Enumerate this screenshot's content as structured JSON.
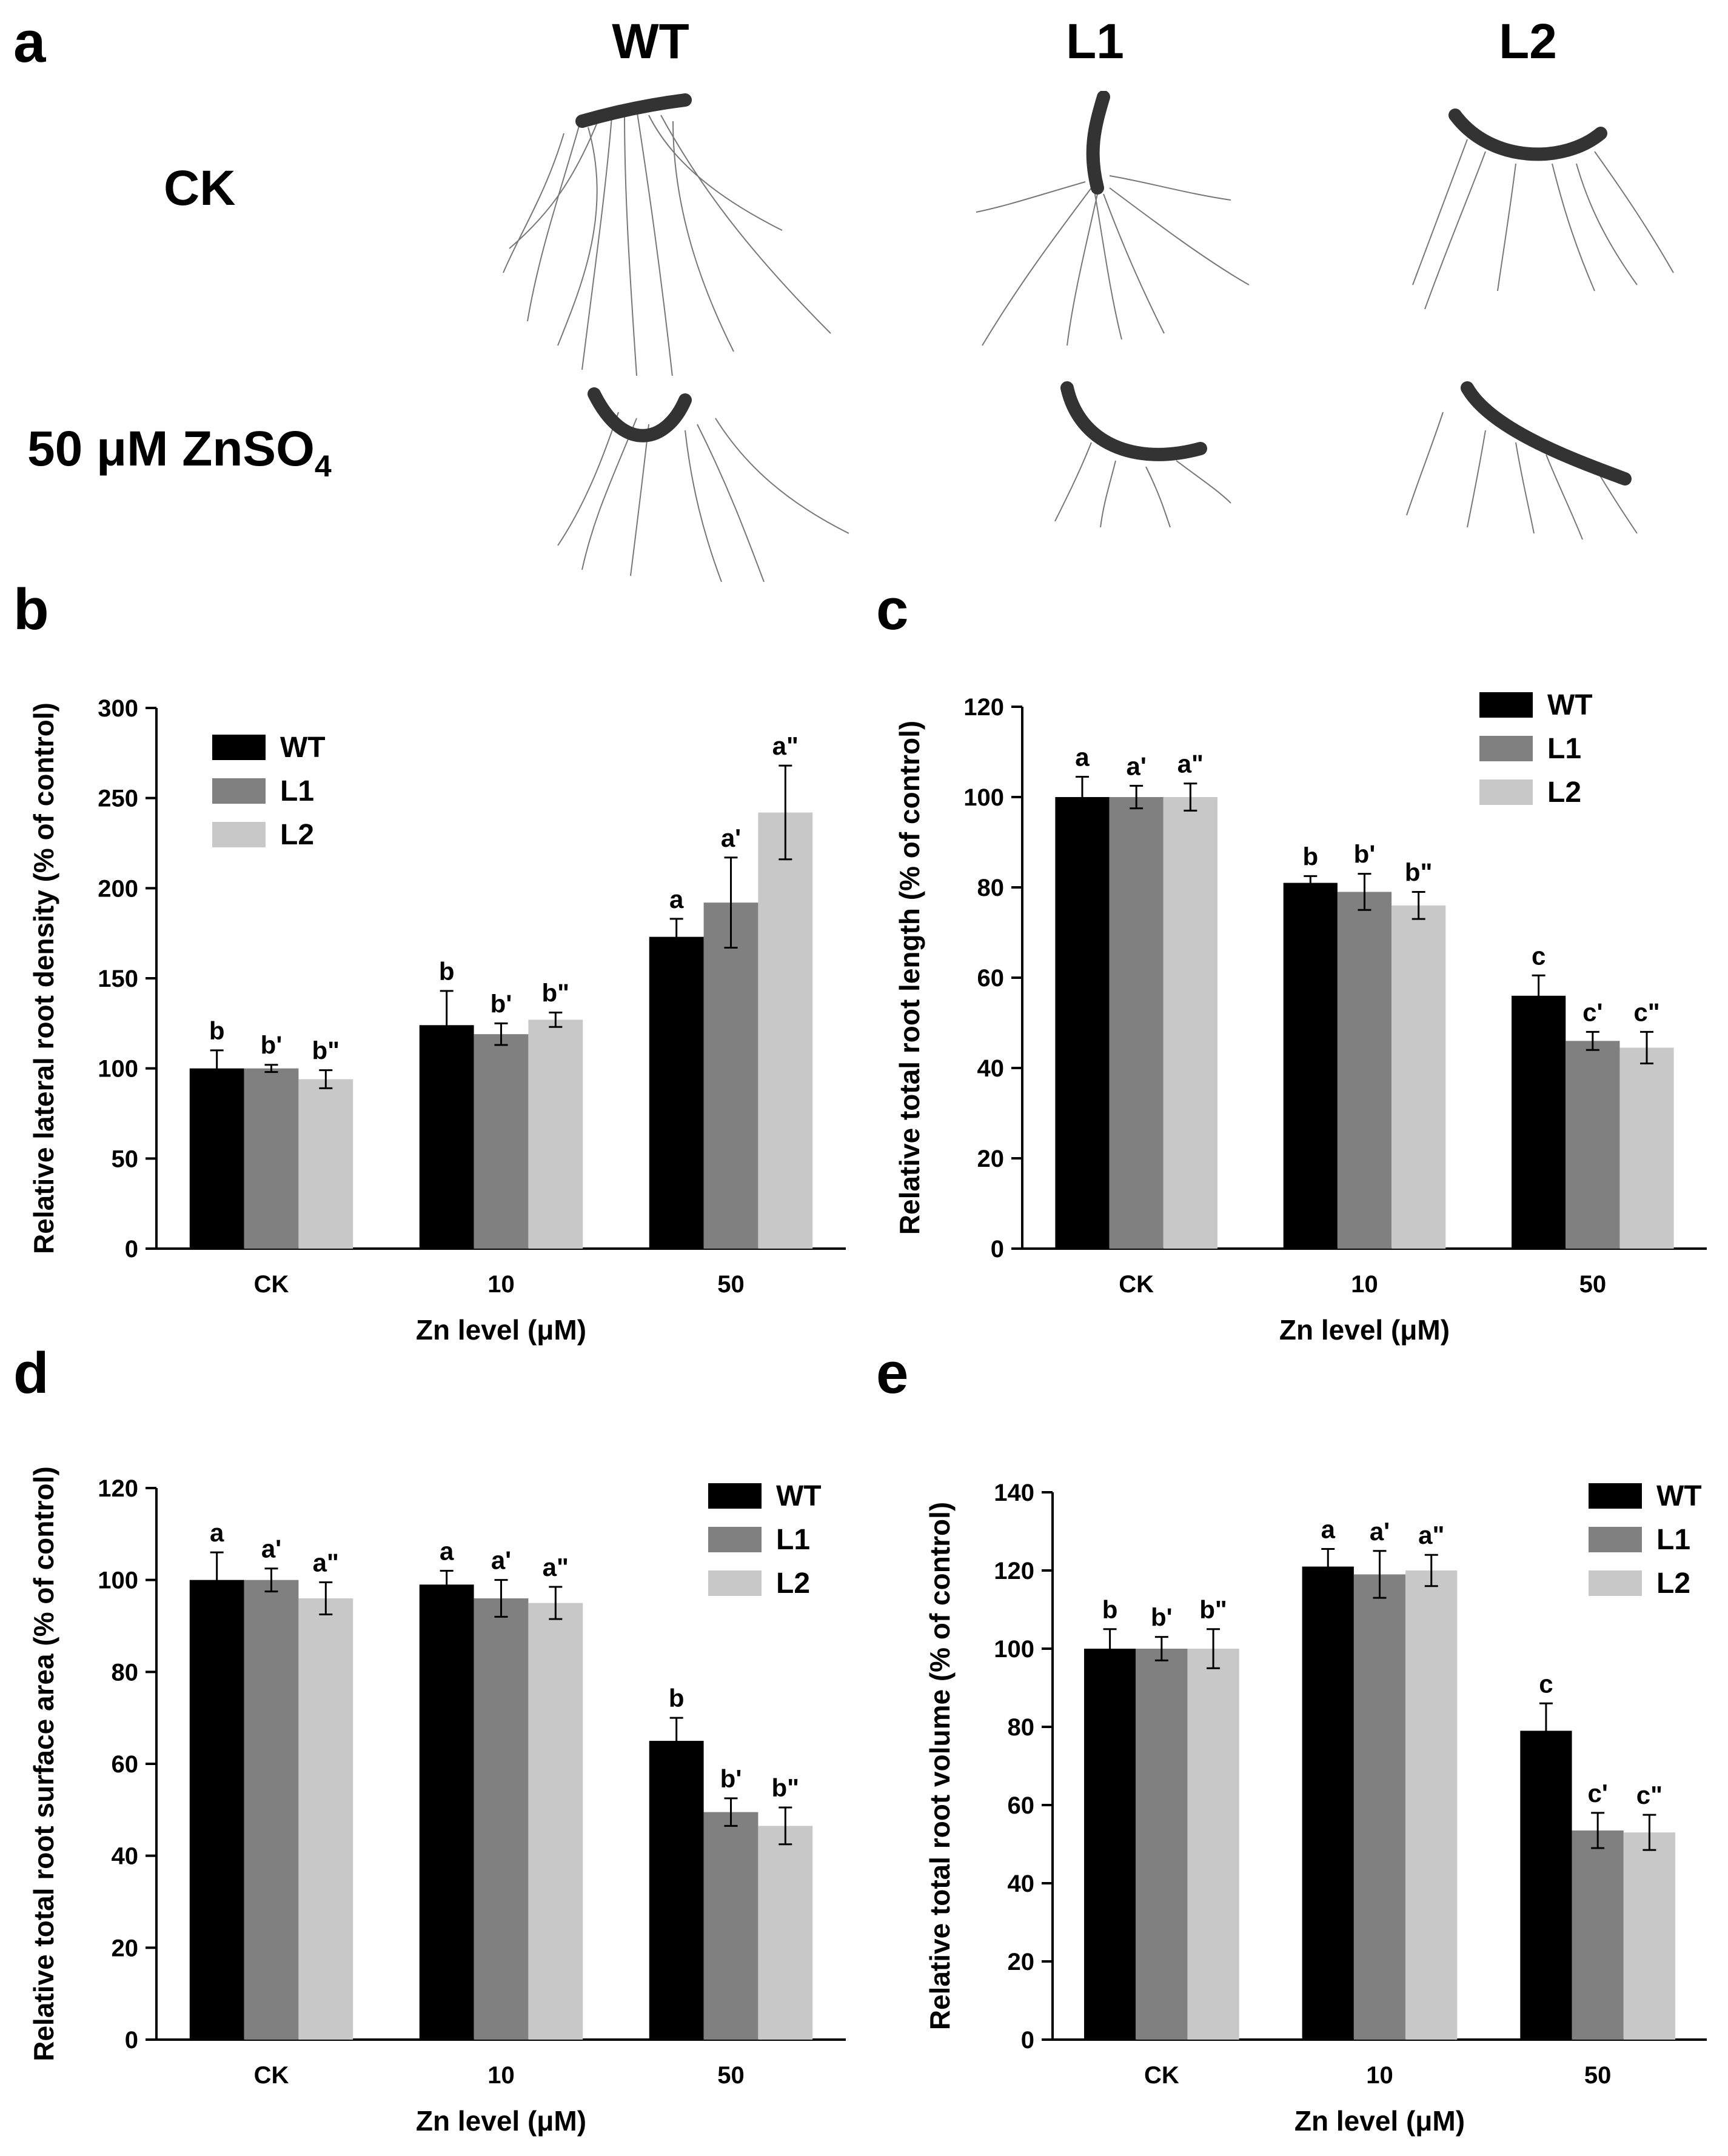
{
  "figure": {
    "panel_labels": {
      "a": "a",
      "b": "b",
      "c": "c",
      "d": "d",
      "e": "e"
    },
    "photo_panel": {
      "columns": [
        "WT",
        "L1",
        "L2"
      ],
      "rows": [
        {
          "label": "CK",
          "sub": ""
        },
        {
          "label": "50 μM ZnSO",
          "sub": "4"
        }
      ]
    }
  },
  "colors": {
    "WT": "#000000",
    "L1": "#808080",
    "L2": "#c8c8c8"
  },
  "chart_data": [
    {
      "panel": "b",
      "type": "bar",
      "title": "",
      "categories": [
        "CK",
        "10",
        "50"
      ],
      "xlabel": "Zn level (μM)",
      "ylabel": "Relative lateral root density (% of control)",
      "ylim": [
        0,
        300
      ],
      "yticks": [
        "0",
        "50",
        "100",
        "150",
        "200",
        "250",
        "300"
      ],
      "legend": {
        "position": "top-left"
      },
      "series": [
        {
          "name": "WT",
          "values": [
            100,
            124,
            173
          ],
          "errors": [
            10,
            19,
            10
          ],
          "labels": [
            "b",
            "b",
            "a"
          ]
        },
        {
          "name": "L1",
          "values": [
            100,
            119,
            192
          ],
          "errors": [
            2,
            6,
            25
          ],
          "labels": [
            "b'",
            "b'",
            "a'"
          ]
        },
        {
          "name": "L2",
          "values": [
            94,
            127,
            242
          ],
          "errors": [
            5,
            4,
            26
          ],
          "labels": [
            "b\"",
            "b\"",
            "a\""
          ]
        }
      ]
    },
    {
      "panel": "c",
      "type": "bar",
      "title": "",
      "categories": [
        "CK",
        "10",
        "50"
      ],
      "xlabel": "Zn level (μM)",
      "ylabel": "Relative total root length (% of control)",
      "ylim": [
        0,
        120
      ],
      "yticks": [
        "0",
        "20",
        "40",
        "60",
        "80",
        "100",
        "120"
      ],
      "legend": {
        "position": "top-right"
      },
      "series": [
        {
          "name": "WT",
          "values": [
            100,
            81,
            56
          ],
          "errors": [
            4.5,
            1.5,
            4.5
          ],
          "labels": [
            "a",
            "b",
            "c"
          ]
        },
        {
          "name": "L1",
          "values": [
            100,
            79,
            46
          ],
          "errors": [
            2.5,
            4,
            2
          ],
          "labels": [
            "a'",
            "b'",
            "c'"
          ]
        },
        {
          "name": "L2",
          "values": [
            100,
            76,
            44.5
          ],
          "errors": [
            3,
            3,
            3.5
          ],
          "labels": [
            "a\"",
            "b\"",
            "c\""
          ]
        }
      ]
    },
    {
      "panel": "d",
      "type": "bar",
      "title": "",
      "categories": [
        "CK",
        "10",
        "50"
      ],
      "xlabel": "Zn level (μM)",
      "ylabel": "Relative total root surface area (% of control)",
      "ylim": [
        0,
        120
      ],
      "yticks": [
        "0",
        "20",
        "40",
        "60",
        "80",
        "100",
        "120"
      ],
      "legend": {
        "position": "top-right"
      },
      "series": [
        {
          "name": "WT",
          "values": [
            100,
            99,
            65
          ],
          "errors": [
            6,
            3,
            5
          ],
          "labels": [
            "a",
            "a",
            "b"
          ]
        },
        {
          "name": "L1",
          "values": [
            100,
            96,
            49.5
          ],
          "errors": [
            2.5,
            4,
            3
          ],
          "labels": [
            "a'",
            "a'",
            "b'"
          ]
        },
        {
          "name": "L2",
          "values": [
            96,
            95,
            46.5
          ],
          "errors": [
            3.5,
            3.5,
            4
          ],
          "labels": [
            "a\"",
            "a\"",
            "b\""
          ]
        }
      ]
    },
    {
      "panel": "e",
      "type": "bar",
      "title": "",
      "categories": [
        "CK",
        "10",
        "50"
      ],
      "xlabel": "Zn level (μM)",
      "ylabel": "Relative total root volume (% of control)",
      "ylim": [
        0,
        140
      ],
      "yticks": [
        "0",
        "20",
        "40",
        "60",
        "80",
        "100",
        "120",
        "140"
      ],
      "legend": {
        "position": "top-right"
      },
      "series": [
        {
          "name": "WT",
          "values": [
            100,
            121,
            79
          ],
          "errors": [
            5,
            4.5,
            7
          ],
          "labels": [
            "b",
            "a",
            "c"
          ]
        },
        {
          "name": "L1",
          "values": [
            100,
            119,
            53.5
          ],
          "errors": [
            3,
            6,
            4.5
          ],
          "labels": [
            "b'",
            "a'",
            "c'"
          ]
        },
        {
          "name": "L2",
          "values": [
            100,
            120,
            53
          ],
          "errors": [
            5,
            4,
            4.5
          ],
          "labels": [
            "b\"",
            "a\"",
            "c\""
          ]
        }
      ]
    }
  ]
}
